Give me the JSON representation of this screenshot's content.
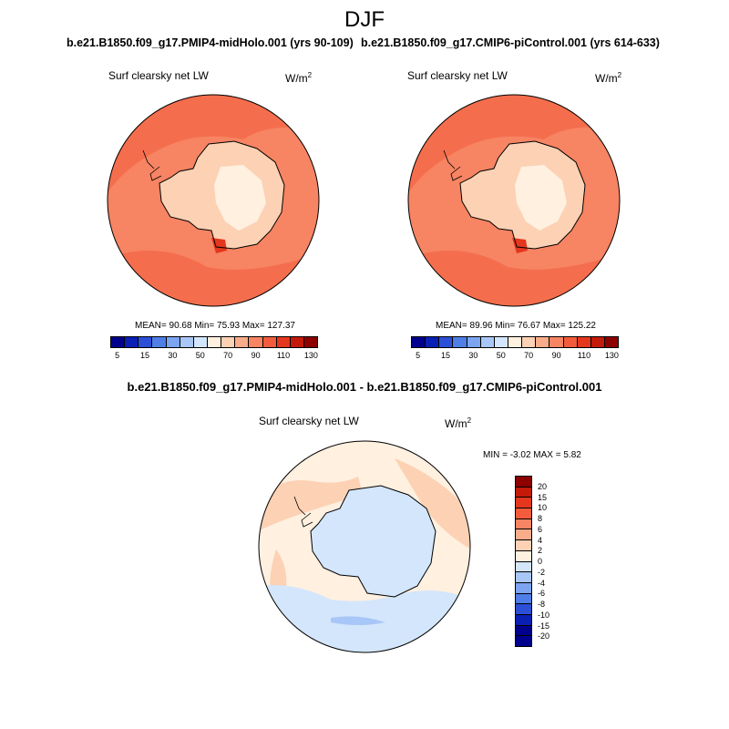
{
  "season": "DJF",
  "panels": [
    {
      "case_title": "b.e21.B1850.f09_g17.PMIP4-midHolo.001 (yrs 90-109)",
      "variable": "Surf clearsky net LW",
      "units_base": "W/m",
      "units_exp": "2",
      "stats": "MEAN=  90.68  Min=  75.93  Max= 127.37"
    },
    {
      "case_title": "b.e21.B1850.f09_g17.CMIP6-piControl.001 (yrs 614-633)",
      "variable": "Surf clearsky net LW",
      "units_base": "W/m",
      "units_exp": "2",
      "stats": "MEAN=  89.96  Min=  76.67  Max= 125.22"
    }
  ],
  "diff_panel": {
    "title": "b.e21.B1850.f09_g17.PMIP4-midHolo.001 - b.e21.B1850.f09_g17.CMIP6-piControl.001",
    "variable": "Surf clearsky net LW",
    "units_base": "W/m",
    "units_exp": "2",
    "stats": "MIN =  -3.02 MAX =   5.82"
  },
  "colorbar_main": {
    "colors": [
      "#00008c",
      "#0a1fb4",
      "#2b4fd6",
      "#4f7fe6",
      "#7ca4f0",
      "#a8c6f7",
      "#d3e6fb",
      "#fff0e0",
      "#fcd1b4",
      "#f9ac8a",
      "#f78463",
      "#f25c3c",
      "#e4371d",
      "#c31a0a",
      "#8c0000"
    ],
    "labels": [
      "5",
      "15",
      "30",
      "50",
      "70",
      "90",
      "110",
      "130"
    ]
  },
  "colorbar_diff": {
    "colors": [
      "#8c0000",
      "#c31a0a",
      "#e4371d",
      "#f25c3c",
      "#f78463",
      "#f9ac8a",
      "#fcd1b4",
      "#fff0e0",
      "#d3e6fb",
      "#a8c6f7",
      "#7ca4f0",
      "#4f7fe6",
      "#2b4fd6",
      "#0a1fb4",
      "#00008c"
    ],
    "labels": [
      "20",
      "15",
      "10",
      "8",
      "6",
      "4",
      "2",
      "0",
      "-2",
      "-4",
      "-6",
      "-8",
      "-10",
      "-15",
      "-20"
    ]
  },
  "map_colors": {
    "ocean_main": "#f78463",
    "ocean_dark": "#f25c3c",
    "land_main": "#fcd1b4",
    "land_light": "#fff0e0",
    "diff_bg": "#fff0e0",
    "diff_pos": "#fcd1b4",
    "diff_neg": "#d3e6fb",
    "diff_neg2": "#a8c6f7"
  }
}
